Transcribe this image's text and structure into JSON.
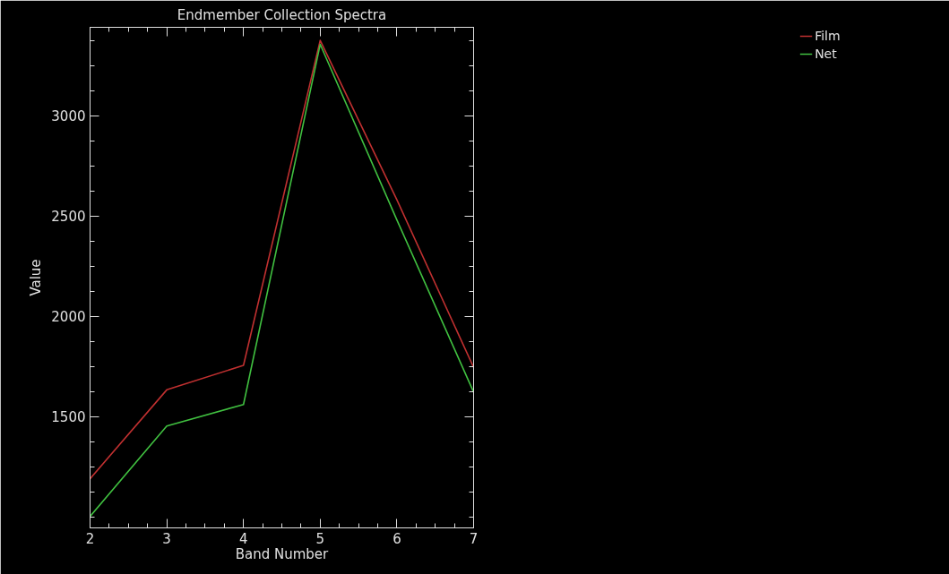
{
  "chart_data": {
    "type": "line",
    "title": "Endmember Collection Spectra",
    "xlabel": "Band Number",
    "ylabel": "Value",
    "x": [
      2,
      3,
      4,
      5,
      6,
      7
    ],
    "series": [
      {
        "name": "Film",
        "color": "#c03030",
        "values": [
          1190,
          1633,
          1755,
          3375,
          2580,
          1745
        ]
      },
      {
        "name": "Net",
        "color": "#40c040",
        "values": [
          1002,
          1453,
          1560,
          3355,
          2480,
          1622
        ]
      }
    ],
    "xlim": [
      2,
      7
    ],
    "xticks": [
      2,
      3,
      4,
      5,
      6,
      7
    ],
    "ylim": [
      945,
      3440
    ],
    "yticks": [
      1500,
      2000,
      2500,
      3000
    ],
    "grid": false,
    "legend": "top right",
    "line_style": "solid"
  }
}
